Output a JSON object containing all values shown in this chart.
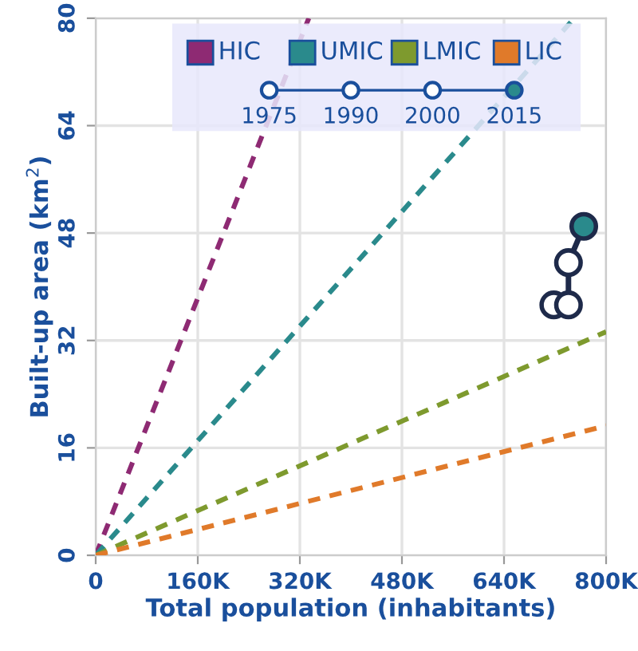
{
  "chart_data": {
    "type": "line",
    "xlabel": "Total population (inhabitants)",
    "ylabel": "Built-up area (km$^{2}$)",
    "xlim": [
      0,
      800000
    ],
    "ylim": [
      0,
      80
    ],
    "xticks": [
      0,
      {
        "value": 160000,
        "label": "160K"
      },
      {
        "value": 320000,
        "label": "320K"
      },
      {
        "value": 480000,
        "label": "480K"
      },
      {
        "value": 640000,
        "label": "640K"
      },
      {
        "value": 800000,
        "label": "800K"
      }
    ],
    "yticks": [
      0,
      16,
      32,
      48,
      64,
      80
    ],
    "grid": true,
    "legend": "top",
    "series": [
      {
        "name": "HIC",
        "color": "#8e2a73",
        "x": [
          0,
          334000
        ],
        "values": [
          0,
          80
        ],
        "line_style": "dashed",
        "marker": "none"
      },
      {
        "name": "UMIC",
        "color": "#2a8a8c",
        "x": [
          0,
          750000
        ],
        "values": [
          0,
          80
        ],
        "line_style": "dashed",
        "marker": "none"
      },
      {
        "name": "LMIC",
        "color": "#7e9a2e",
        "x": [
          0,
          800000
        ],
        "values": [
          0,
          33.3
        ],
        "line_style": "dashed",
        "marker": "none"
      },
      {
        "name": "LIC",
        "color": "#e07a2a",
        "x": [
          0,
          800000
        ],
        "values": [
          0,
          19.3
        ],
        "line_style": "dashed",
        "marker": "none"
      },
      {
        "color": "#1e2a4a",
        "x": [
          718000,
          741000,
          741000,
          765000
        ],
        "values": [
          37.3,
          37.3,
          43.6,
          49.0
        ],
        "colors": [
          "#ffffff",
          "#ffffff",
          "#ffffff",
          "#2a8a8c"
        ],
        "line_style": "solid",
        "marker": "circle"
      }
    ],
    "annotations": [
      "1975",
      "1990",
      "2000",
      "2015"
    ]
  }
}
